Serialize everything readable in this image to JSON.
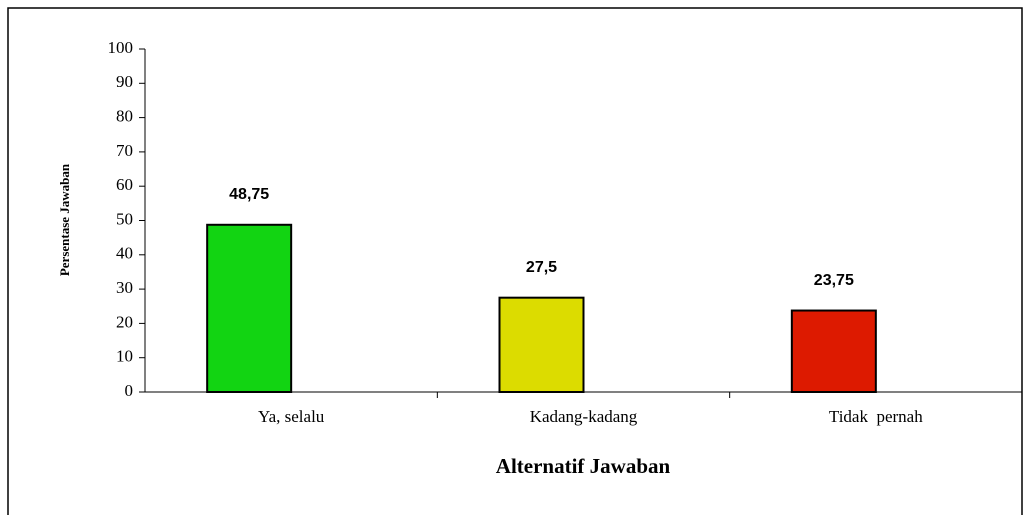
{
  "chart_data": {
    "type": "bar",
    "categories": [
      "Ya, selalu",
      "Kadang-kadang",
      "Tidak  pernah"
    ],
    "values": [
      48.75,
      27.5,
      23.75
    ],
    "value_labels": [
      "48,75",
      "27,5",
      "23,75"
    ],
    "colors": [
      "#12d412",
      "#dcdc00",
      "#dd1a00"
    ],
    "ylim": [
      0,
      100
    ],
    "yticks": [
      0,
      10,
      20,
      30,
      40,
      50,
      60,
      70,
      80,
      90,
      100
    ],
    "grid": false,
    "y_label": "Persentase Jawaban",
    "x_label": "Alternatif Jawaban"
  }
}
